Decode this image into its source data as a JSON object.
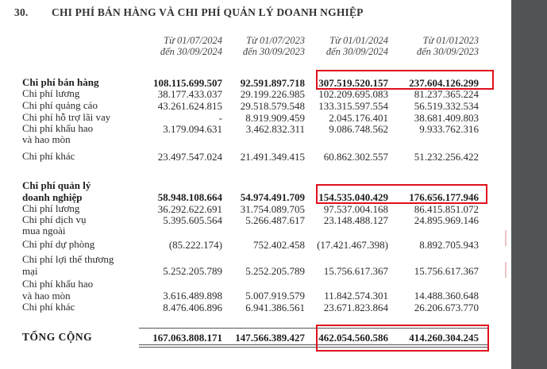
{
  "section": {
    "number": "30.",
    "title": "CHI PHÍ BÁN HÀNG VÀ CHI PHÍ QUẢN LÝ DOANH NGHIỆP"
  },
  "columns": [
    {
      "line1": "Từ 01/07/2024",
      "line2": "đến 30/09/2024"
    },
    {
      "line1": "Từ 01/07/2023",
      "line2": "đến 30/09/2023"
    },
    {
      "line1": "Từ 01/01/2024",
      "line2": "đến 30/09/2024"
    },
    {
      "line1": "Từ 01/012023",
      "line2": "đến 30/09/2023"
    }
  ],
  "rows": [
    {
      "label": [
        "Chi phí bán hàng"
      ],
      "values": [
        "108.115.699.507",
        "92.591.897.718",
        "307.519.520.157",
        "237.604.126.299"
      ],
      "bold": true,
      "highlighted": true
    },
    {
      "label": [
        "Chi phí lương"
      ],
      "values": [
        "38.177.433.037",
        "29.199.226.985",
        "102.209.695.083",
        "81.237.365.224"
      ]
    },
    {
      "label": [
        "Chi phí quảng cáo"
      ],
      "values": [
        "43.261.624.815",
        "29.518.579.548",
        "133.315.597.554",
        "56.519.332.534"
      ]
    },
    {
      "label": [
        "Chi phí hỗ trợ lãi vay"
      ],
      "values": [
        "-",
        "8.919.909.459",
        "2.045.176.401",
        "38.681.409.803"
      ]
    },
    {
      "label": [
        "Chi phí khấu hao",
        "và hao mòn"
      ],
      "values": [
        "3.179.094.631",
        "3.462.832.311",
        "9.086.748.562",
        "9.933.762.316"
      ],
      "value_line": 1
    },
    {
      "label": [
        "Chi phí khác"
      ],
      "values": [
        "23.497.547.024",
        "21.491.349.415",
        "60.862.302.557",
        "51.232.256.422"
      ]
    },
    {
      "label": [
        "Chi phí quản lý",
        "doanh nghiệp"
      ],
      "values": [
        "58.948.108.664",
        "54.974.491.709",
        "154.535.040.429",
        "176.656.177.946"
      ],
      "bold": true,
      "highlighted": true,
      "value_line": 2
    },
    {
      "label": [
        "Chi phí lương"
      ],
      "values": [
        "36.292.622.691",
        "31.754.089.705",
        "97.537.004.168",
        "86.415.851.072"
      ]
    },
    {
      "label": [
        "Chi phí dịch vụ",
        "mua ngoài"
      ],
      "values": [
        "5.395.605.564",
        "5.266.487.617",
        "23.148.488.127",
        "24.895.969.146"
      ],
      "value_line": 1
    },
    {
      "label": [
        "Chi phí dự phòng"
      ],
      "values": [
        "(85.222.174)",
        "752.402.458",
        "(17.421.467.398)",
        "8.892.705.943"
      ]
    },
    {
      "label": [
        "Chi phí lợi thế thương",
        "mại"
      ],
      "values": [
        "5.252.205.789",
        "5.252.205.789",
        "15.756.617.367",
        "15.756.617.367"
      ],
      "value_line": 2
    },
    {
      "label": [
        "Chi phí khấu hao",
        "và hao mòn"
      ],
      "values": [
        "3.616.489.898",
        "5.007.919.579",
        "11.842.574.301",
        "14.488.360.648"
      ],
      "value_line": 2
    },
    {
      "label": [
        "Chi phí khác"
      ],
      "values": [
        "8.476.406.896",
        "6.941.386.561",
        "23.671.823.864",
        "26.206.673.770"
      ]
    },
    {
      "label": [
        "TỔNG CỘNG"
      ],
      "values": [
        "167.063.808.171",
        "147.566.389.427",
        "462.054.560.586",
        "414.260.304.245"
      ],
      "bold": true,
      "highlighted": true,
      "total": true
    }
  ],
  "colors": {
    "highlight": "#e0101c",
    "sidebar": "#515355"
  }
}
